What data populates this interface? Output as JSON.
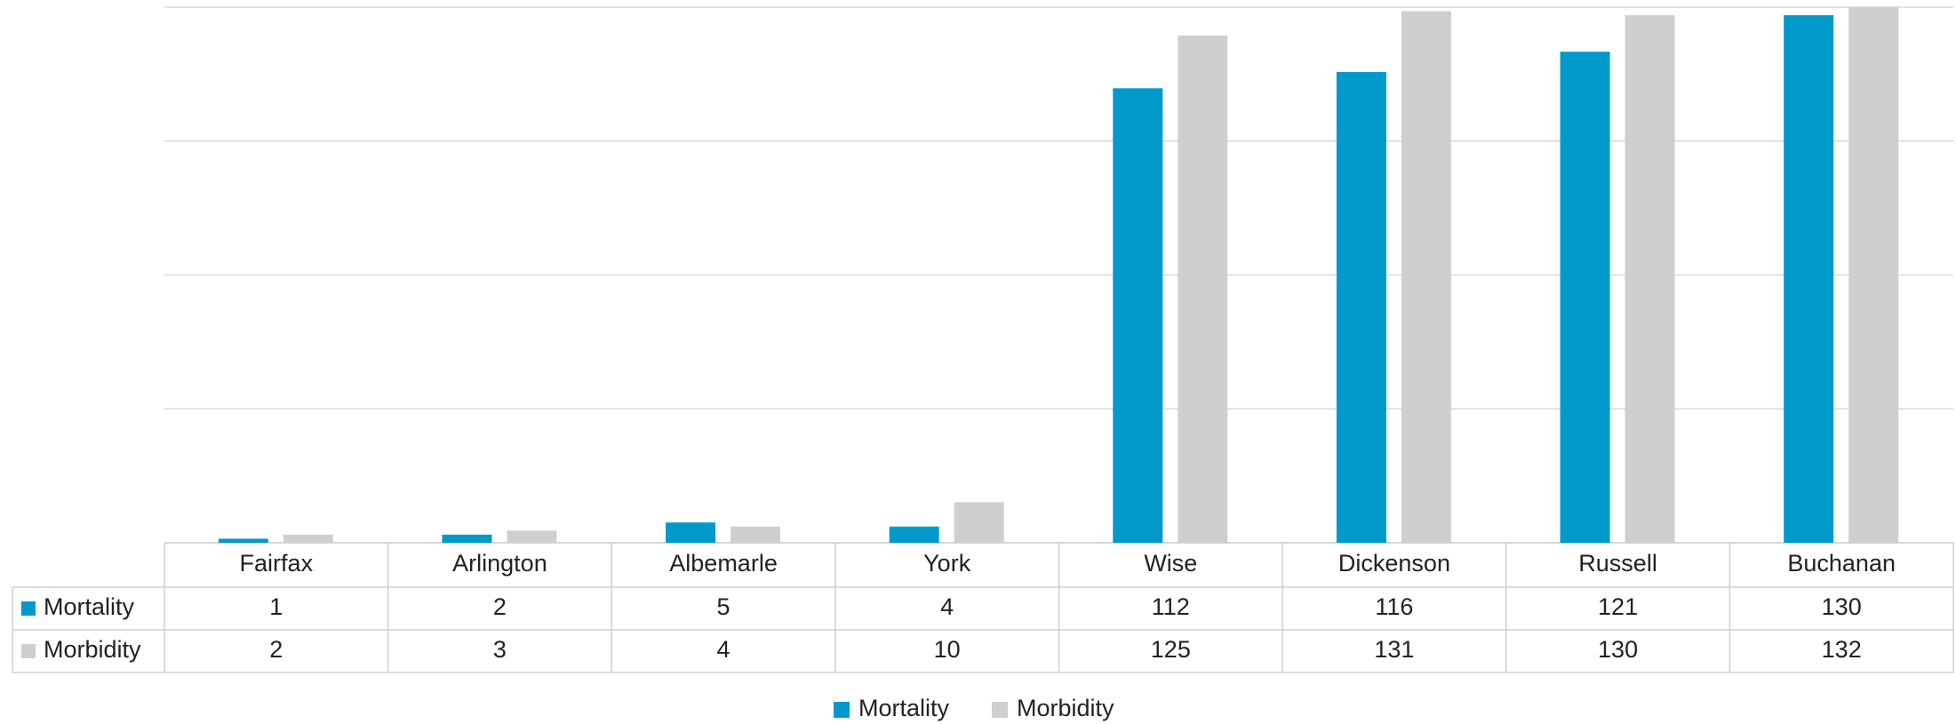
{
  "chart_data": {
    "type": "bar",
    "categories": [
      "Fairfax",
      "Arlington",
      "Albemarle",
      "York",
      "Wise",
      "Dickenson",
      "Russell",
      "Buchanan"
    ],
    "series": [
      {
        "name": "Mortality",
        "color": "#0099cc",
        "values": [
          1,
          2,
          5,
          4,
          112,
          116,
          121,
          130
        ]
      },
      {
        "name": "Morbidity",
        "color": "#d0cfd0",
        "values": [
          2,
          3,
          4,
          10,
          125,
          131,
          130,
          132
        ]
      }
    ],
    "ylim": [
      0,
      132
    ],
    "yticks": [
      0,
      33,
      66,
      99,
      132
    ],
    "grid": true,
    "legend": "bottom",
    "data_table": true
  }
}
